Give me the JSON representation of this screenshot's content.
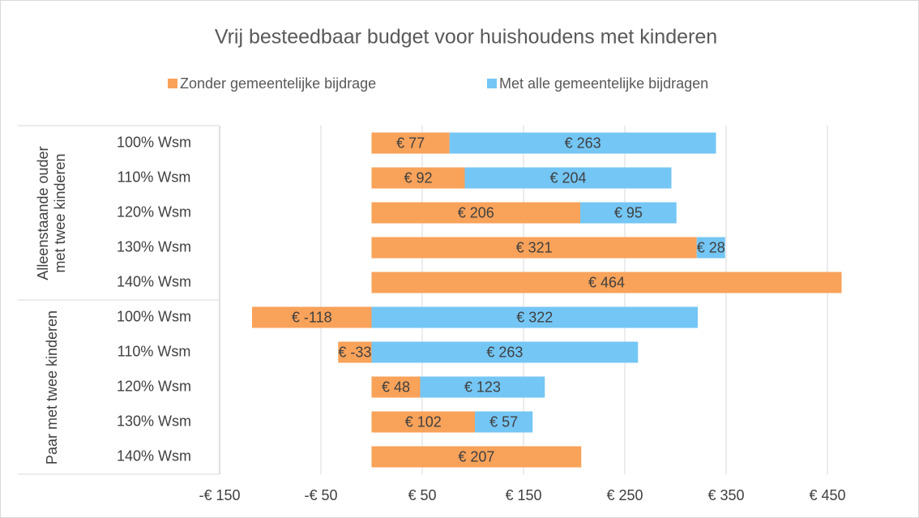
{
  "chart_data": {
    "type": "stacked-barh",
    "title": "Vrij besteedbaar budget voor huishoudens met kinderen",
    "groups": [
      {
        "name": "Alleenstaande ouder met twee kinderen",
        "categories": [
          "100% Wsm",
          "110% Wsm",
          "120% Wsm",
          "130% Wsm",
          "140% Wsm"
        ]
      },
      {
        "name": "Paar met twee kinderen",
        "categories": [
          "100% Wsm",
          "110% Wsm",
          "120% Wsm",
          "130% Wsm",
          "140% Wsm"
        ]
      }
    ],
    "series": [
      {
        "name": "Zonder gemeentelijke bijdrage",
        "color": "#f9a25a",
        "values": [
          77,
          92,
          206,
          321,
          464,
          -118,
          -33,
          48,
          102,
          207
        ],
        "value_labels": [
          "€ 77",
          "€ 92",
          "€ 206",
          "€ 321",
          "€ 464",
          "€ -118",
          "€ -33",
          "€ 48",
          "€ 102",
          "€ 207"
        ]
      },
      {
        "name": "Met alle gemeentelijke bijdragen",
        "color": "#74c6f5",
        "values": [
          263,
          204,
          95,
          28,
          null,
          322,
          263,
          123,
          57,
          null
        ],
        "value_labels": [
          "€ 263",
          "€ 204",
          "€ 95",
          "€ 28",
          null,
          "€ 322",
          "€ 263",
          "€ 123",
          "€ 57",
          null
        ]
      }
    ],
    "xlim": [
      -150,
      500
    ],
    "xticks": [
      {
        "value": -150,
        "label": "-€ 150"
      },
      {
        "value": -50,
        "label": "-€ 50"
      },
      {
        "value": 50,
        "label": "€ 50"
      },
      {
        "value": 150,
        "label": "€ 150"
      },
      {
        "value": 250,
        "label": "€ 250"
      },
      {
        "value": 350,
        "label": "€ 350"
      },
      {
        "value": 450,
        "label": "€ 450"
      }
    ],
    "grid": true,
    "legend": "top"
  }
}
